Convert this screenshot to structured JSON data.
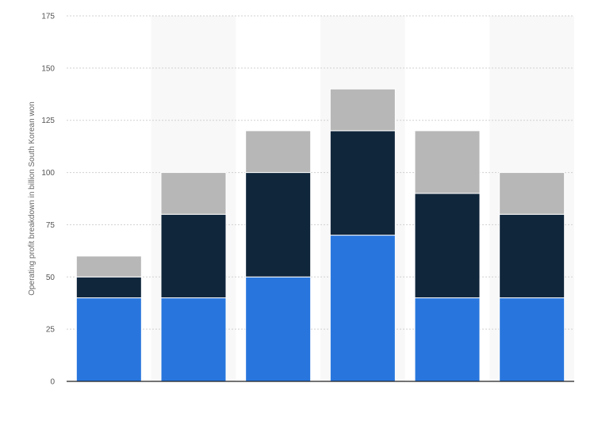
{
  "chart_data": {
    "type": "bar",
    "stacked": true,
    "categories": [
      "",
      "",
      "",
      "",
      "",
      ""
    ],
    "ylabel": "Operating profit breakdown in billion South Korean won",
    "xlabel": "",
    "ylim": [
      0,
      175
    ],
    "yticks": [
      0,
      25,
      50,
      75,
      100,
      125,
      150,
      175
    ],
    "grid": true,
    "series": [
      {
        "values": [
          40,
          40,
          50,
          70,
          40,
          40
        ],
        "color": "#2876dd"
      },
      {
        "values": [
          10,
          40,
          50,
          50,
          50,
          40
        ],
        "color": "#10263b"
      },
      {
        "values": [
          10,
          20,
          20,
          20,
          30,
          20
        ],
        "color": "#b7b7b7"
      }
    ]
  }
}
